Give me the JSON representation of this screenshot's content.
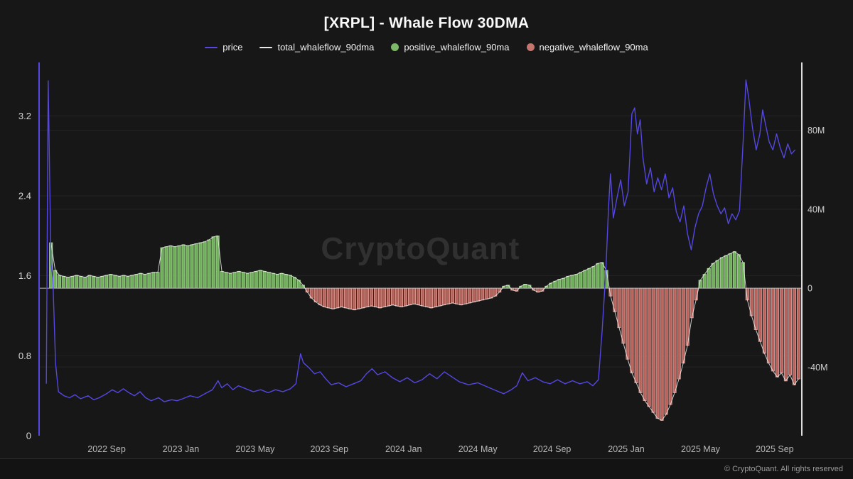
{
  "page": {
    "title": "[XRPL] - Whale Flow 30DMA",
    "watermark": "CryptoQuant",
    "footer": "© CryptoQuant. All rights reserved"
  },
  "legend": [
    {
      "label": "price",
      "marker": "line",
      "color": "#5447e2"
    },
    {
      "label": "total_whaleflow_90dma",
      "marker": "line",
      "color": "#e9e9e9"
    },
    {
      "label": "positive_whaleflow_90ma",
      "marker": "dot",
      "color": "#7db868"
    },
    {
      "label": "negative_whaleflow_90ma",
      "marker": "dot",
      "color": "#c5756c"
    }
  ],
  "chart_data": {
    "type": "mixed",
    "title": "[XRPL] - Whale Flow 30DMA",
    "x_unit": "months_since_2022-06",
    "x_range": [
      -0.64,
      40.46
    ],
    "x_ticks": [
      {
        "m": 3,
        "label": "2022 Sep"
      },
      {
        "m": 7,
        "label": "2023 Jan"
      },
      {
        "m": 11,
        "label": "2023 May"
      },
      {
        "m": 15,
        "label": "2023 Sep"
      },
      {
        "m": 19,
        "label": "2024 Jan"
      },
      {
        "m": 23,
        "label": "2024 May"
      },
      {
        "m": 27,
        "label": "2024 Sep"
      },
      {
        "m": 31,
        "label": "2025 Jan"
      },
      {
        "m": 35,
        "label": "2025 May"
      },
      {
        "m": 39,
        "label": "2025 Sep"
      }
    ],
    "left_axis": {
      "series": "price",
      "color": "#5447e2",
      "range": [
        0,
        3.685
      ],
      "ticks": [
        {
          "v": 0,
          "label": "0"
        },
        {
          "v": 0.8,
          "label": "0.8"
        },
        {
          "v": 1.6,
          "label": "1.6"
        },
        {
          "v": 2.4,
          "label": "2.4"
        },
        {
          "v": 3.2,
          "label": "3.2"
        }
      ]
    },
    "right_axis": {
      "series": "whaleflow_90ma",
      "color": "#dcdcdc",
      "range": [
        -74.8,
        111.9
      ],
      "ticks": [
        {
          "v": -40,
          "label": "-40M"
        },
        {
          "v": 0,
          "label": "0"
        },
        {
          "v": 40,
          "label": "40M"
        },
        {
          "v": 80,
          "label": "80M"
        }
      ]
    },
    "zero_line_color": "#b5b5b5",
    "grid_color": "rgba(255,255,255,0.055)",
    "series": {
      "price": {
        "type": "line",
        "axis": "left",
        "color": "#5447e2",
        "points": [
          [
            -0.25,
            0.52
          ],
          [
            -0.15,
            3.55
          ],
          [
            0.0,
            1.72
          ],
          [
            0.1,
            1.58
          ],
          [
            0.25,
            0.72
          ],
          [
            0.4,
            0.44
          ],
          [
            0.7,
            0.4
          ],
          [
            1.0,
            0.38
          ],
          [
            1.3,
            0.41
          ],
          [
            1.6,
            0.37
          ],
          [
            2.0,
            0.4
          ],
          [
            2.3,
            0.36
          ],
          [
            2.6,
            0.38
          ],
          [
            3.0,
            0.42
          ],
          [
            3.3,
            0.46
          ],
          [
            3.6,
            0.43
          ],
          [
            3.9,
            0.47
          ],
          [
            4.2,
            0.43
          ],
          [
            4.5,
            0.4
          ],
          [
            4.8,
            0.44
          ],
          [
            5.1,
            0.38
          ],
          [
            5.4,
            0.35
          ],
          [
            5.8,
            0.38
          ],
          [
            6.1,
            0.34
          ],
          [
            6.5,
            0.36
          ],
          [
            6.8,
            0.35
          ],
          [
            7.1,
            0.37
          ],
          [
            7.5,
            0.4
          ],
          [
            7.9,
            0.38
          ],
          [
            8.3,
            0.42
          ],
          [
            8.7,
            0.46
          ],
          [
            9.0,
            0.55
          ],
          [
            9.2,
            0.48
          ],
          [
            9.5,
            0.52
          ],
          [
            9.8,
            0.46
          ],
          [
            10.1,
            0.5
          ],
          [
            10.5,
            0.47
          ],
          [
            10.9,
            0.44
          ],
          [
            11.3,
            0.46
          ],
          [
            11.7,
            0.43
          ],
          [
            12.1,
            0.46
          ],
          [
            12.5,
            0.44
          ],
          [
            12.9,
            0.47
          ],
          [
            13.2,
            0.52
          ],
          [
            13.45,
            0.82
          ],
          [
            13.6,
            0.73
          ],
          [
            13.9,
            0.68
          ],
          [
            14.2,
            0.62
          ],
          [
            14.5,
            0.64
          ],
          [
            14.8,
            0.57
          ],
          [
            15.1,
            0.51
          ],
          [
            15.5,
            0.53
          ],
          [
            15.9,
            0.49
          ],
          [
            16.3,
            0.52
          ],
          [
            16.7,
            0.55
          ],
          [
            17.0,
            0.62
          ],
          [
            17.3,
            0.67
          ],
          [
            17.6,
            0.61
          ],
          [
            18.0,
            0.64
          ],
          [
            18.4,
            0.58
          ],
          [
            18.8,
            0.54
          ],
          [
            19.2,
            0.58
          ],
          [
            19.6,
            0.53
          ],
          [
            20.0,
            0.56
          ],
          [
            20.4,
            0.62
          ],
          [
            20.8,
            0.57
          ],
          [
            21.2,
            0.64
          ],
          [
            21.6,
            0.59
          ],
          [
            22.0,
            0.54
          ],
          [
            22.5,
            0.51
          ],
          [
            23.0,
            0.53
          ],
          [
            23.5,
            0.49
          ],
          [
            24.0,
            0.45
          ],
          [
            24.4,
            0.42
          ],
          [
            24.8,
            0.46
          ],
          [
            25.1,
            0.5
          ],
          [
            25.4,
            0.63
          ],
          [
            25.7,
            0.55
          ],
          [
            26.1,
            0.58
          ],
          [
            26.5,
            0.54
          ],
          [
            26.9,
            0.52
          ],
          [
            27.3,
            0.56
          ],
          [
            27.7,
            0.52
          ],
          [
            28.1,
            0.55
          ],
          [
            28.5,
            0.52
          ],
          [
            28.9,
            0.54
          ],
          [
            29.2,
            0.5
          ],
          [
            29.5,
            0.56
          ],
          [
            29.7,
            1.05
          ],
          [
            29.9,
            1.65
          ],
          [
            30.05,
            2.3
          ],
          [
            30.15,
            2.62
          ],
          [
            30.3,
            2.18
          ],
          [
            30.5,
            2.38
          ],
          [
            30.7,
            2.56
          ],
          [
            30.9,
            2.3
          ],
          [
            31.1,
            2.44
          ],
          [
            31.3,
            3.22
          ],
          [
            31.45,
            3.28
          ],
          [
            31.6,
            3.02
          ],
          [
            31.75,
            3.16
          ],
          [
            31.9,
            2.78
          ],
          [
            32.1,
            2.52
          ],
          [
            32.3,
            2.68
          ],
          [
            32.5,
            2.44
          ],
          [
            32.7,
            2.58
          ],
          [
            32.9,
            2.46
          ],
          [
            33.1,
            2.62
          ],
          [
            33.3,
            2.38
          ],
          [
            33.5,
            2.48
          ],
          [
            33.7,
            2.24
          ],
          [
            33.9,
            2.14
          ],
          [
            34.1,
            2.3
          ],
          [
            34.3,
            2.02
          ],
          [
            34.5,
            1.86
          ],
          [
            34.7,
            2.08
          ],
          [
            34.9,
            2.22
          ],
          [
            35.1,
            2.3
          ],
          [
            35.3,
            2.48
          ],
          [
            35.5,
            2.62
          ],
          [
            35.7,
            2.42
          ],
          [
            35.9,
            2.3
          ],
          [
            36.1,
            2.22
          ],
          [
            36.3,
            2.28
          ],
          [
            36.5,
            2.12
          ],
          [
            36.7,
            2.22
          ],
          [
            36.9,
            2.16
          ],
          [
            37.1,
            2.25
          ],
          [
            37.3,
            2.95
          ],
          [
            37.45,
            3.56
          ],
          [
            37.6,
            3.38
          ],
          [
            37.8,
            3.08
          ],
          [
            38.0,
            2.86
          ],
          [
            38.2,
            3.02
          ],
          [
            38.35,
            3.26
          ],
          [
            38.5,
            3.12
          ],
          [
            38.7,
            2.94
          ],
          [
            38.9,
            2.86
          ],
          [
            39.1,
            3.02
          ],
          [
            39.3,
            2.88
          ],
          [
            39.5,
            2.78
          ],
          [
            39.7,
            2.92
          ],
          [
            39.9,
            2.82
          ],
          [
            40.1,
            2.86
          ]
        ]
      },
      "whaleflow_90ma_bars": {
        "type": "bar",
        "axis": "right",
        "unit": "M",
        "start_month": 0,
        "step_month": 0.2302,
        "positive": {
          "fill": "#6fae5a",
          "stroke": "#a3da8e"
        },
        "negative": {
          "fill": "#b5625c",
          "stroke": "#de9a90"
        },
        "values": [
          23,
          9,
          6.5,
          6,
          5.5,
          6,
          6.5,
          6,
          5.5,
          6.5,
          6,
          5.5,
          6,
          6.5,
          7,
          6.5,
          6,
          6.5,
          6,
          6.5,
          7,
          7.5,
          7,
          7.5,
          8,
          8,
          20.5,
          21,
          21.5,
          21,
          21.5,
          22,
          21.5,
          22,
          22.5,
          23,
          23.5,
          24.5,
          26,
          26.5,
          8.5,
          8,
          7.5,
          8,
          8.5,
          8,
          7.5,
          8,
          8.5,
          9,
          8.5,
          8,
          7.5,
          7,
          7.5,
          7,
          6.5,
          5.5,
          4,
          1.5,
          -2,
          -5,
          -7,
          -8.5,
          -9.5,
          -10,
          -10.5,
          -10,
          -9.5,
          -10,
          -10.5,
          -11,
          -10.5,
          -10,
          -9.5,
          -9,
          -9.5,
          -10,
          -9.5,
          -9,
          -8.5,
          -9,
          -9.5,
          -9,
          -8.5,
          -8,
          -8.5,
          -9,
          -9.5,
          -10,
          -9.5,
          -9,
          -8.5,
          -8,
          -7.5,
          -8,
          -8.5,
          -8,
          -7.5,
          -7,
          -6.5,
          -6,
          -5.5,
          -5,
          -4,
          -2,
          1,
          1.5,
          -1,
          -1.5,
          1,
          2,
          1.5,
          -1,
          -2,
          -1.5,
          1,
          2.5,
          3.5,
          4.5,
          5,
          6,
          6.5,
          7,
          8,
          9,
          10,
          11,
          12.5,
          13,
          9,
          -4,
          -12,
          -20,
          -28,
          -36,
          -43,
          -48,
          -53,
          -57,
          -60,
          -63,
          -66,
          -67,
          -64,
          -59,
          -53,
          -46,
          -38,
          -29,
          -15,
          -6,
          4,
          7,
          10,
          12.5,
          14,
          15.5,
          16.5,
          17.5,
          18.5,
          17,
          13,
          -6,
          -14,
          -21,
          -27,
          -33,
          -38,
          -42,
          -45,
          -43,
          -47,
          -44,
          -49,
          -46
        ]
      },
      "total_whaleflow_90dma": {
        "type": "line",
        "axis": "right",
        "color": "#eaeaea",
        "derived_from": "whaleflow_90ma_bars"
      }
    }
  }
}
